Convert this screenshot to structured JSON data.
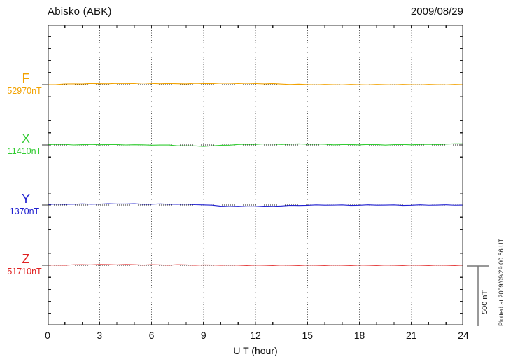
{
  "chart_data": {
    "type": "line",
    "station_title": "Abisko (ABK)",
    "date_label": "2009/08/29",
    "xlabel": "U T (hour)",
    "x_range": [
      0,
      24
    ],
    "x_major_ticks": [
      0,
      3,
      6,
      9,
      12,
      15,
      18,
      21,
      24
    ],
    "x_minor_tick_step_hours": 1,
    "x_sample_step_hours": 0.5,
    "band_nT": 500,
    "y_minor_tick_nT": 100,
    "y_total_span_nT": 2500,
    "grid": {
      "vertical_dotted_every_hours": 3,
      "horizontal_dotted_baselines": true
    },
    "legend_position": "left",
    "scale_bar": {
      "label": "500 nT",
      "span_nT": 500
    },
    "plotted_note": "Plotted at 2009/09/29 00:56 UT",
    "series": [
      {
        "name": "F",
        "base_value_label": "52970nT",
        "color": "#F2A200",
        "offsets_nT": [
          0,
          2,
          4,
          6,
          7,
          8,
          8,
          9,
          9,
          10,
          11,
          12,
          10,
          9,
          8,
          8,
          8,
          9,
          9,
          10,
          11,
          12,
          11,
          10,
          9,
          8,
          7,
          5,
          3,
          2,
          1,
          0,
          0,
          0,
          0,
          0,
          0,
          0,
          0,
          0,
          0,
          0,
          0,
          0,
          0,
          0,
          0,
          0,
          0
        ]
      },
      {
        "name": "X",
        "base_value_label": "11410nT",
        "color": "#33CC33",
        "offsets_nT": [
          5,
          4,
          3,
          2,
          2,
          3,
          4,
          3,
          2,
          2,
          1,
          0,
          0,
          -1,
          -2,
          -5,
          -8,
          -9,
          -10,
          -8,
          -4,
          0,
          3,
          5,
          7,
          8,
          7,
          6,
          7,
          8,
          8,
          7,
          5,
          3,
          2,
          2,
          3,
          3,
          2,
          1,
          2,
          3,
          3,
          4,
          4,
          5,
          6,
          9,
          12
        ]
      },
      {
        "name": "Y",
        "base_value_label": "1370nT",
        "color": "#2020D0",
        "offsets_nT": [
          5,
          6,
          7,
          8,
          8,
          8,
          9,
          9,
          10,
          10,
          9,
          8,
          8,
          8,
          8,
          7,
          6,
          4,
          2,
          -3,
          -8,
          -11,
          -12,
          -12,
          -12,
          -11,
          -9,
          -7,
          -5,
          -3,
          -2,
          -1,
          0,
          0,
          -1,
          -2,
          -1,
          0,
          0,
          0,
          -1,
          -2,
          -1,
          0,
          0,
          0,
          0,
          0,
          0
        ]
      },
      {
        "name": "Z",
        "base_value_label": "51710nT",
        "color": "#E02222",
        "offsets_nT": [
          0,
          1,
          2,
          3,
          4,
          5,
          5,
          5,
          5,
          5,
          4,
          4,
          3,
          3,
          3,
          3,
          3,
          2,
          2,
          2,
          2,
          1,
          1,
          0,
          0,
          0,
          0,
          0,
          0,
          0,
          0,
          0,
          0,
          0,
          0,
          0,
          0,
          0,
          0,
          0,
          0,
          0,
          0,
          0,
          0,
          0,
          0,
          0,
          0
        ]
      }
    ]
  }
}
